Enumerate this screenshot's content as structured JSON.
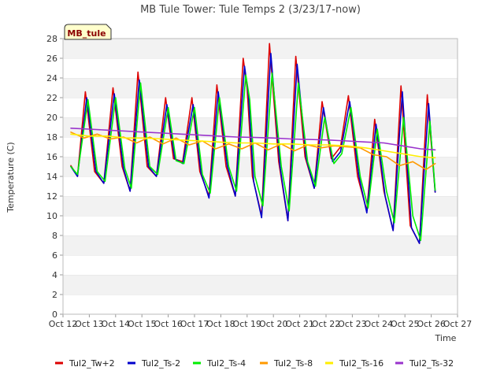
{
  "chart_data": {
    "type": "line",
    "title": "MB Tule Tower: Tule Temps 2 (3/23/17-now)",
    "xlabel": "Time",
    "ylabel": "Temperature (C)",
    "badge": "MB_tule",
    "ylim": [
      0,
      28
    ],
    "xlim": [
      12,
      27
    ],
    "y_ticks": [
      0,
      2,
      4,
      6,
      8,
      10,
      12,
      14,
      16,
      18,
      20,
      22,
      24,
      26,
      28
    ],
    "x_tick_values": [
      12,
      13,
      14,
      15,
      16,
      17,
      18,
      19,
      20,
      21,
      22,
      23,
      24,
      25,
      26,
      27
    ],
    "x_tick_labels": [
      "Oct 12",
      "Oct 13",
      "Oct 14",
      "Oct 15",
      "Oct 16",
      "Oct 17",
      "Oct 18",
      "Oct 19",
      "Oct 20",
      "Oct 21",
      "Oct 22",
      "Oct 23",
      "Oct 24",
      "Oct 25",
      "Oct 26",
      "Oct 27"
    ],
    "grid": "horizontal bands",
    "legend_position": "bottom",
    "series": [
      {
        "name": "Tul2_Tw+2",
        "color": "#dd0000",
        "x": [
          12.3,
          12.55,
          12.85,
          13.2,
          13.55,
          13.9,
          14.25,
          14.55,
          14.85,
          15.2,
          15.55,
          15.9,
          16.2,
          16.55,
          16.9,
          17.2,
          17.55,
          17.85,
          18.2,
          18.55,
          18.85,
          19.0,
          19.2,
          19.55,
          19.85,
          20.2,
          20.55,
          20.85,
          21.2,
          21.55,
          21.85,
          22.2,
          22.55,
          22.85,
          23.2,
          23.55,
          23.85,
          24.2,
          24.55,
          24.85,
          25.2,
          25.55,
          25.85,
          26.15
        ],
        "y": [
          15.1,
          14.0,
          22.6,
          14.5,
          13.3,
          23.0,
          15.0,
          12.5,
          24.6,
          15.0,
          14.0,
          22.0,
          15.8,
          15.5,
          22.0,
          14.5,
          12.0,
          23.3,
          15.0,
          12.0,
          26.0,
          23.0,
          14.0,
          10.0,
          27.5,
          15.5,
          9.5,
          26.2,
          16.0,
          12.8,
          21.6,
          15.8,
          17.0,
          22.2,
          14.0,
          10.5,
          19.8,
          12.5,
          8.5,
          23.2,
          9.0,
          7.2,
          22.3,
          12.4
        ]
      },
      {
        "name": "Tul2_Ts-2",
        "color": "#0000cc",
        "x": [
          12.3,
          12.55,
          12.9,
          13.25,
          13.55,
          13.95,
          14.3,
          14.55,
          14.9,
          15.25,
          15.55,
          15.95,
          16.25,
          16.55,
          16.95,
          17.25,
          17.55,
          17.9,
          18.25,
          18.55,
          18.9,
          19.05,
          19.25,
          19.55,
          19.9,
          20.25,
          20.55,
          20.9,
          21.25,
          21.55,
          21.9,
          22.25,
          22.55,
          22.9,
          23.25,
          23.55,
          23.9,
          24.25,
          24.55,
          24.9,
          25.25,
          25.55,
          25.9,
          26.15
        ],
        "y": [
          15.0,
          14.0,
          22.0,
          14.5,
          13.3,
          22.4,
          14.8,
          12.5,
          23.8,
          15.0,
          14.0,
          21.3,
          15.8,
          15.3,
          21.3,
          14.3,
          11.8,
          22.6,
          15.0,
          12.0,
          25.2,
          22.3,
          13.5,
          9.8,
          26.5,
          15.0,
          9.5,
          25.4,
          15.8,
          12.8,
          21.0,
          15.5,
          16.5,
          21.6,
          14.0,
          10.3,
          19.3,
          12.0,
          8.5,
          22.6,
          8.8,
          7.2,
          21.4,
          12.4
        ]
      },
      {
        "name": "Tul2_Ts-4",
        "color": "#00ee00",
        "x": [
          12.3,
          12.55,
          12.95,
          13.3,
          13.6,
          14.0,
          14.35,
          14.6,
          14.95,
          15.3,
          15.6,
          16.0,
          16.3,
          16.6,
          17.0,
          17.3,
          17.6,
          17.95,
          18.3,
          18.6,
          18.95,
          19.1,
          19.3,
          19.6,
          19.95,
          20.3,
          20.6,
          20.95,
          21.3,
          21.6,
          21.95,
          22.3,
          22.6,
          22.95,
          23.3,
          23.6,
          23.95,
          24.3,
          24.6,
          24.95,
          25.3,
          25.6,
          25.95,
          26.15
        ],
        "y": [
          15.0,
          14.2,
          21.8,
          14.5,
          13.5,
          22.0,
          14.8,
          12.8,
          23.5,
          15.0,
          14.2,
          21.0,
          15.6,
          15.3,
          21.0,
          14.2,
          12.3,
          22.0,
          15.0,
          12.5,
          24.3,
          21.8,
          14.0,
          11.0,
          24.5,
          15.0,
          10.5,
          23.5,
          15.5,
          13.0,
          20.0,
          15.3,
          16.3,
          21.0,
          14.0,
          10.8,
          18.8,
          12.5,
          9.3,
          20.0,
          10.0,
          7.5,
          19.6,
          12.6
        ]
      },
      {
        "name": "Tul2_Ts-8",
        "color": "#ff9900",
        "x": [
          12.3,
          12.8,
          13.3,
          13.8,
          14.3,
          14.8,
          15.3,
          15.8,
          16.3,
          16.8,
          17.3,
          17.8,
          18.3,
          18.8,
          19.3,
          19.8,
          20.3,
          20.8,
          21.3,
          21.8,
          22.3,
          22.8,
          23.3,
          23.8,
          24.3,
          24.8,
          25.3,
          25.8,
          26.15
        ],
        "y": [
          18.5,
          17.9,
          18.3,
          17.8,
          18.0,
          17.4,
          18.0,
          17.3,
          17.9,
          17.2,
          17.6,
          16.8,
          17.3,
          16.8,
          17.4,
          16.7,
          17.3,
          16.6,
          17.2,
          16.9,
          17.1,
          17.0,
          16.9,
          16.2,
          16.0,
          15.1,
          15.5,
          14.7,
          15.3
        ]
      },
      {
        "name": "Tul2_Ts-16",
        "color": "#ffee00",
        "x": [
          12.3,
          13.0,
          13.7,
          14.4,
          15.1,
          15.8,
          16.5,
          17.2,
          17.9,
          18.6,
          19.3,
          20.0,
          20.7,
          21.4,
          22.1,
          22.8,
          23.5,
          24.2,
          24.9,
          25.6,
          26.15
        ],
        "y": [
          18.3,
          18.1,
          18.1,
          17.9,
          17.9,
          17.8,
          17.7,
          17.6,
          17.5,
          17.4,
          17.4,
          17.3,
          17.3,
          17.2,
          17.2,
          17.1,
          16.9,
          16.6,
          16.3,
          16.0,
          15.9
        ]
      },
      {
        "name": "Tul2_Ts-32",
        "color": "#9933cc",
        "x": [
          12.3,
          13.0,
          13.7,
          14.4,
          15.1,
          15.8,
          16.5,
          17.2,
          17.9,
          18.6,
          19.3,
          20.0,
          20.7,
          21.4,
          22.1,
          22.8,
          23.5,
          24.2,
          24.9,
          25.6,
          26.15
        ],
        "y": [
          18.9,
          18.8,
          18.7,
          18.6,
          18.5,
          18.4,
          18.3,
          18.2,
          18.1,
          18.0,
          17.95,
          17.9,
          17.8,
          17.75,
          17.7,
          17.6,
          17.5,
          17.4,
          17.1,
          16.8,
          16.7
        ]
      }
    ]
  }
}
